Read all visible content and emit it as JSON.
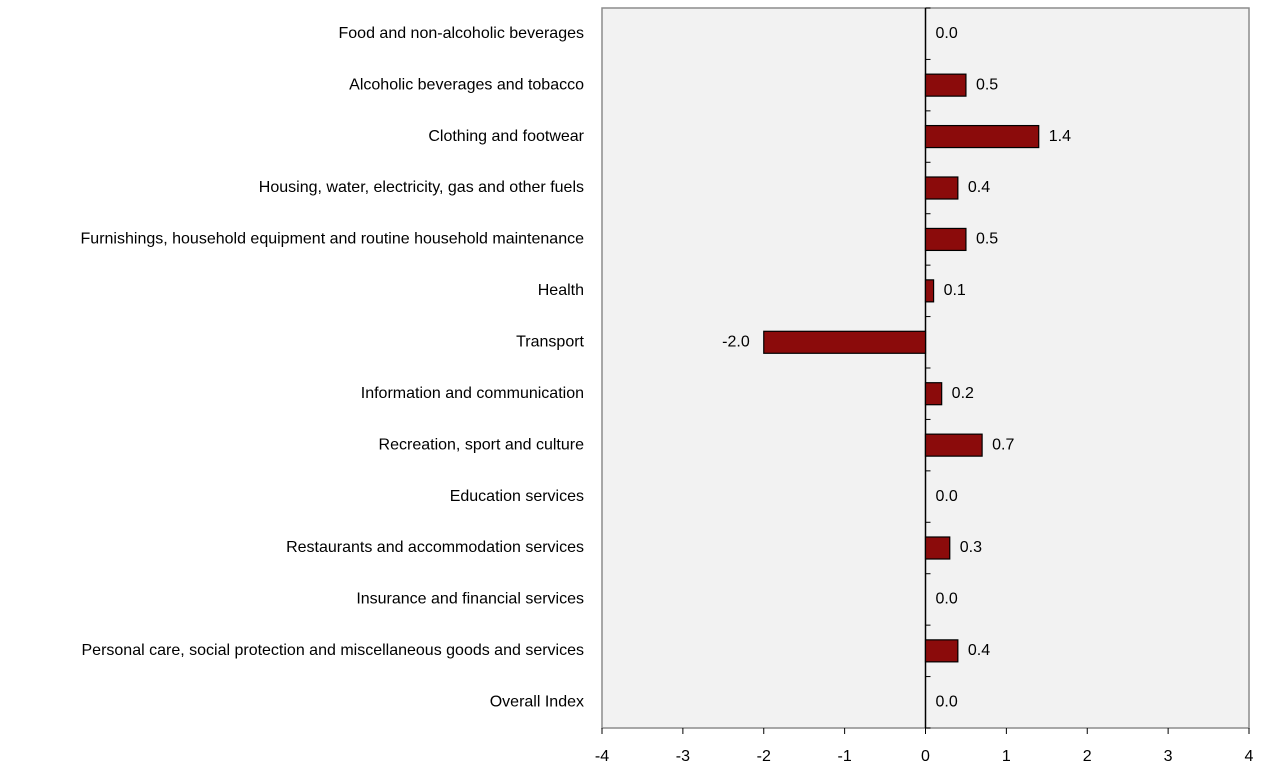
{
  "chart_data": {
    "type": "barh",
    "categories": [
      "Food and non-alcoholic beverages",
      "Alcoholic beverages and tobacco",
      "Clothing and footwear",
      "Housing, water, electricity, gas and other fuels",
      "Furnishings, household equipment and routine household maintenance",
      "Health",
      "Transport",
      "Information and communication",
      "Recreation, sport and culture",
      "Education services",
      "Restaurants and accommodation services",
      "Insurance and financial services",
      "Personal care, social protection and miscellaneous goods and services",
      "Overall Index"
    ],
    "values": [
      0,
      0.5,
      1.4,
      0.4,
      0.5,
      0.1,
      -2,
      0.2,
      0.7,
      0,
      0.3,
      0,
      0.4,
      0
    ],
    "value_labels": [
      "0.0",
      "0.5",
      "1.4",
      "0.4",
      "0.5",
      "0.1",
      "-2.0",
      "0.2",
      "0.7",
      "0.0",
      "0.3",
      "0.0",
      "0.4",
      "0.0"
    ],
    "color": "#8b0b0b",
    "xlim": [
      -4,
      4
    ],
    "xticks": [
      -4,
      -3,
      -2,
      -1,
      0,
      1,
      2,
      3,
      4
    ]
  }
}
